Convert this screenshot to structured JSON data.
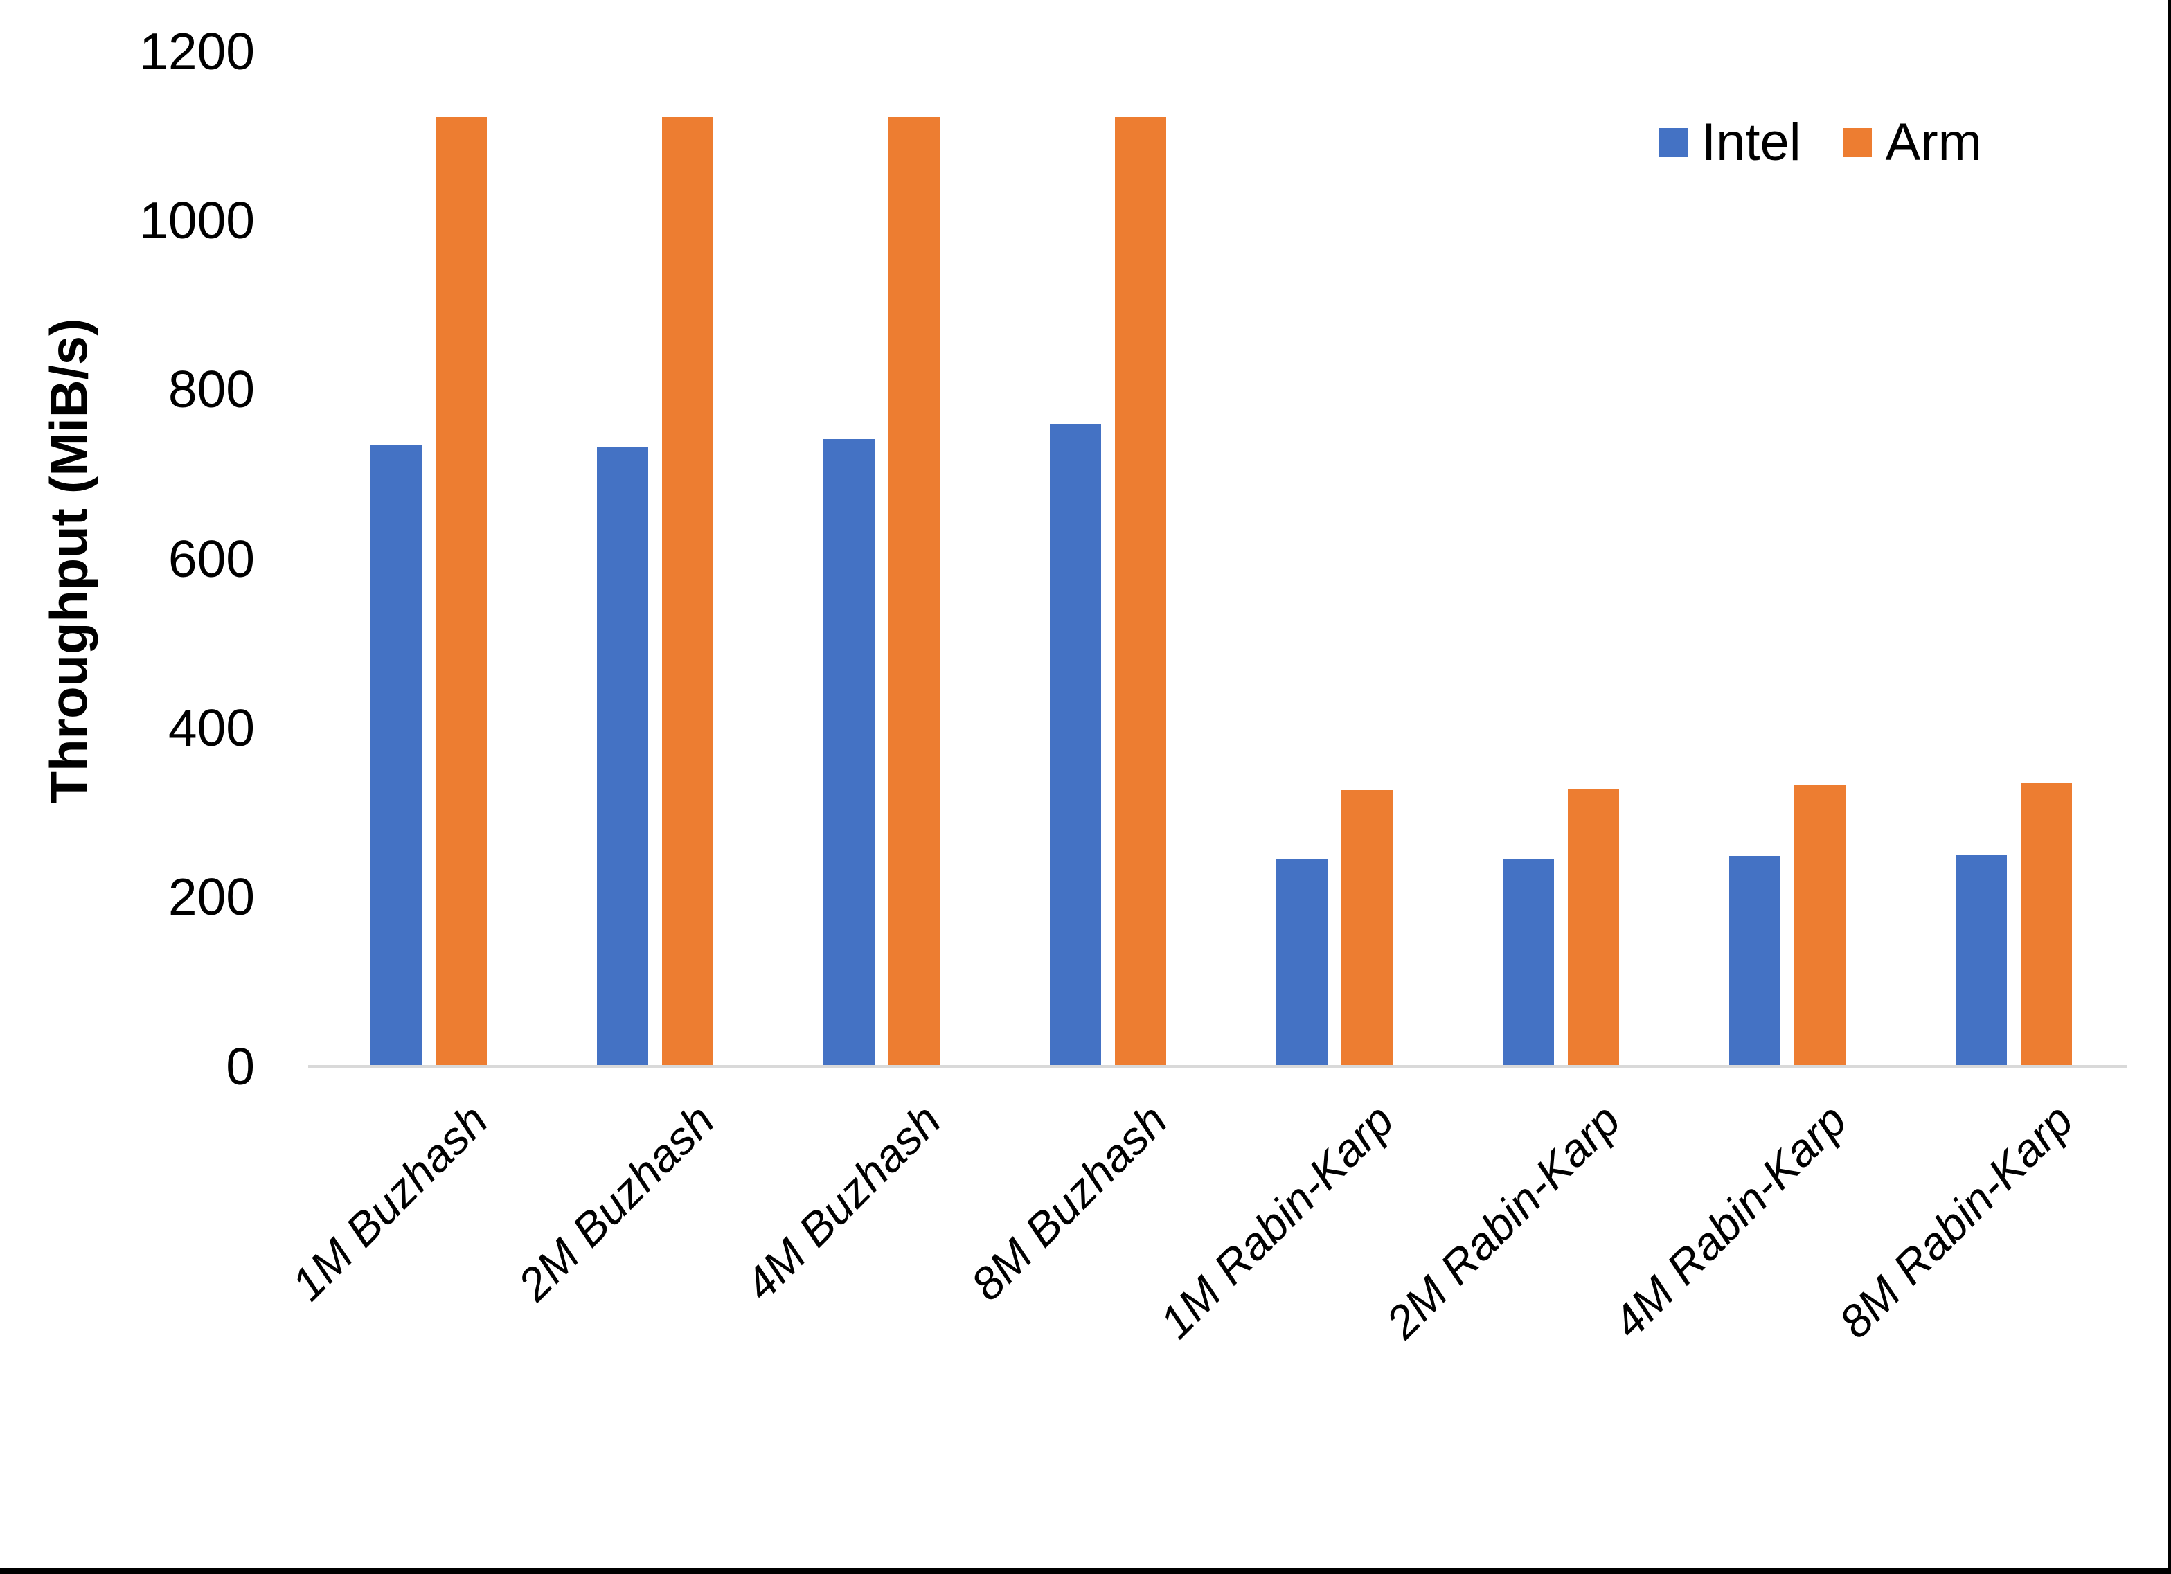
{
  "colors": {
    "intel": "#4472C4",
    "arm": "#ED7D31",
    "axis_line": "#D9D9D9",
    "text": "#000000",
    "border": "#000000"
  },
  "legend": {
    "position": "top-right",
    "items": [
      {
        "label": "Intel",
        "color": "#4472C4"
      },
      {
        "label": "Arm",
        "color": "#ED7D31"
      }
    ]
  },
  "chart_data": {
    "type": "bar",
    "title": "",
    "xlabel": "",
    "ylabel": "Throughput (MiB/s)",
    "ylim": [
      0,
      1200
    ],
    "yticks": [
      0,
      200,
      400,
      600,
      800,
      1000,
      1200
    ],
    "grid": false,
    "legend_position": "top-right",
    "categories": [
      "1M Buzhash",
      "2M Buzhash",
      "4M Buzhash",
      "8M Buzhash",
      "1M Rabin-Karp",
      "2M Rabin-Karp",
      "4M Rabin-Karp",
      "8M Rabin-Karp"
    ],
    "series": [
      {
        "name": "Intel",
        "color": "#4472C4",
        "values": [
          734,
          733,
          742,
          759,
          245,
          245,
          249,
          250
        ]
      },
      {
        "name": "Arm",
        "color": "#ED7D31",
        "values": [
          1122,
          1122,
          1122,
          1122,
          327,
          328,
          332,
          335
        ]
      }
    ]
  }
}
